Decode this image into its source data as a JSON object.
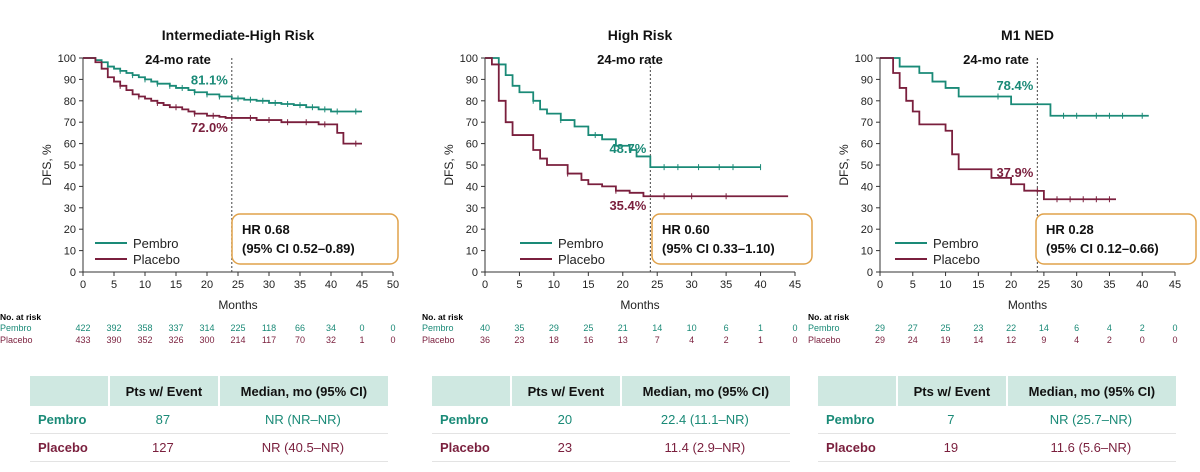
{
  "colors": {
    "pembro": "#1a8a77",
    "placebo": "#7a1f3d",
    "hr_box_border": "#e0a24a",
    "table_header_bg": "#cfe8e1"
  },
  "risk_title": "No. at risk",
  "table_headers": [
    "Pts w/ Event",
    "Median, mo (95% CI)"
  ],
  "chart_data": [
    {
      "type": "line",
      "title": "Intermediate-High Risk",
      "xlabel": "Months",
      "ylabel": "DFS, %",
      "xlim": [
        0,
        50
      ],
      "ylim": [
        0,
        100
      ],
      "xticks": [
        0,
        5,
        10,
        15,
        20,
        25,
        30,
        35,
        40,
        45,
        50
      ],
      "yticks": [
        0,
        10,
        20,
        30,
        40,
        50,
        60,
        70,
        80,
        90,
        100
      ],
      "rate_label": "24-mo rate",
      "rate_month": 24,
      "hr_line1": "HR 0.68",
      "hr_line2": "(95% CI 0.52–0.89)",
      "legend_placement": "bottom-left",
      "series": [
        {
          "name": "Pembro",
          "rate_text": "81.1%",
          "x": [
            0,
            2,
            3,
            4,
            5,
            6,
            7,
            8,
            9,
            10,
            11,
            12,
            13,
            14,
            15,
            16,
            17,
            18,
            19,
            20,
            21,
            22,
            23,
            24,
            26,
            28,
            30,
            32,
            34,
            36,
            38,
            40,
            42,
            44,
            45
          ],
          "y": [
            100,
            99,
            98,
            96,
            95,
            94,
            93,
            92,
            91,
            90,
            89,
            88,
            88,
            87,
            86,
            86,
            85,
            84,
            84,
            83,
            83,
            82,
            82,
            81.1,
            80.5,
            80,
            79,
            78.5,
            78,
            77,
            76,
            75,
            75,
            75,
            75
          ],
          "censor_x": [
            4,
            6,
            8,
            10,
            12,
            14,
            16,
            18,
            20,
            22,
            25,
            27,
            29,
            31,
            33,
            35,
            37,
            39,
            41,
            44
          ]
        },
        {
          "name": "Placebo",
          "rate_text": "72.0%",
          "x": [
            0,
            2,
            3,
            4,
            5,
            6,
            7,
            8,
            9,
            10,
            11,
            12,
            13,
            14,
            15,
            16,
            17,
            18,
            19,
            20,
            21,
            22,
            23,
            24,
            26,
            28,
            30,
            32,
            34,
            36,
            38,
            40,
            41,
            42,
            45
          ],
          "y": [
            100,
            98,
            95,
            91,
            89,
            87,
            85,
            83,
            82,
            81,
            80,
            79,
            78,
            77,
            77,
            76,
            75,
            74,
            74,
            73,
            73,
            72.5,
            72,
            72.0,
            72,
            71,
            71,
            70,
            70,
            70,
            69,
            69,
            65,
            60,
            60
          ],
          "censor_x": [
            6,
            9,
            12,
            15,
            18,
            21,
            24,
            27,
            30,
            33,
            36,
            39,
            44
          ]
        }
      ],
      "risk_x": [
        0,
        5,
        10,
        15,
        20,
        25,
        30,
        35,
        40,
        45,
        50
      ],
      "risk": [
        {
          "label": "Pembro",
          "values": [
            422,
            392,
            358,
            337,
            314,
            225,
            118,
            66,
            34,
            0,
            0
          ]
        },
        {
          "label": "Placebo",
          "values": [
            433,
            390,
            352,
            326,
            300,
            214,
            117,
            70,
            32,
            1,
            0
          ]
        }
      ],
      "table": [
        {
          "arm": "Pembro",
          "events": "87",
          "median": "NR (NR–NR)"
        },
        {
          "arm": "Placebo",
          "events": "127",
          "median": "NR (40.5–NR)"
        }
      ]
    },
    {
      "type": "line",
      "title": "High Risk",
      "xlabel": "Months",
      "ylabel": "DFS, %",
      "xlim": [
        0,
        45
      ],
      "ylim": [
        0,
        100
      ],
      "xticks": [
        0,
        5,
        10,
        15,
        20,
        25,
        30,
        35,
        40,
        45
      ],
      "yticks": [
        0,
        10,
        20,
        30,
        40,
        50,
        60,
        70,
        80,
        90,
        100
      ],
      "rate_label": "24-mo rate",
      "rate_month": 24,
      "hr_line1": "HR 0.60",
      "hr_line2": "(95% CI 0.33–1.10)",
      "legend_placement": "bottom-left",
      "series": [
        {
          "name": "Pembro",
          "rate_text": "48.7%",
          "x": [
            0,
            2,
            3,
            4,
            5,
            7,
            8,
            9,
            11,
            13,
            15,
            17,
            19,
            21,
            22,
            24,
            26,
            30,
            35,
            40
          ],
          "y": [
            100,
            97,
            92,
            87,
            84,
            80,
            76,
            74,
            71,
            68,
            64,
            62,
            59,
            57,
            54,
            49,
            49,
            49,
            49,
            49
          ],
          "censor_x": [
            7,
            11,
            16,
            21,
            26,
            28,
            31,
            34,
            36,
            40
          ]
        },
        {
          "name": "Placebo",
          "rate_text": "35.4%",
          "x": [
            0,
            1,
            2,
            3,
            4,
            7,
            8,
            9,
            12,
            14,
            15,
            17,
            19,
            21,
            23,
            26,
            30,
            35,
            40,
            44
          ],
          "y": [
            100,
            97,
            80,
            70,
            64,
            57,
            53,
            50,
            46,
            43,
            41,
            40,
            38,
            37,
            35.4,
            35.4,
            35.4,
            35.4,
            35.4,
            35.4
          ],
          "censor_x": [
            12,
            19,
            26,
            30,
            35
          ]
        }
      ],
      "risk_x": [
        0,
        5,
        10,
        15,
        20,
        25,
        30,
        35,
        40,
        45
      ],
      "risk": [
        {
          "label": "Pembro",
          "values": [
            40,
            35,
            29,
            25,
            21,
            14,
            10,
            6,
            1,
            0
          ]
        },
        {
          "label": "Placebo",
          "values": [
            36,
            23,
            18,
            16,
            13,
            7,
            4,
            2,
            1,
            0
          ]
        }
      ],
      "table": [
        {
          "arm": "Pembro",
          "events": "20",
          "median": "22.4 (11.1–NR)"
        },
        {
          "arm": "Placebo",
          "events": "23",
          "median": "11.4 (2.9–NR)"
        }
      ]
    },
    {
      "type": "line",
      "title": "M1 NED",
      "xlabel": "Months",
      "ylabel": "DFS, %",
      "xlim": [
        0,
        45
      ],
      "ylim": [
        0,
        100
      ],
      "xticks": [
        0,
        5,
        10,
        15,
        20,
        25,
        30,
        35,
        40,
        45
      ],
      "yticks": [
        0,
        10,
        20,
        30,
        40,
        50,
        60,
        70,
        80,
        90,
        100
      ],
      "rate_label": "24-mo rate",
      "rate_month": 24,
      "hr_line1": "HR 0.28",
      "hr_line2": "(95% CI 0.12–0.66)",
      "legend_placement": "bottom-left",
      "series": [
        {
          "name": "Pembro",
          "rate_text": "78.4%",
          "x": [
            0,
            3,
            6,
            8,
            10,
            12,
            20,
            25,
            26,
            30,
            35,
            41
          ],
          "y": [
            100,
            96,
            93,
            89,
            86,
            82,
            78.4,
            78.4,
            73,
            73,
            73,
            73
          ],
          "censor_x": [
            18,
            28,
            30,
            33,
            35,
            37,
            40
          ]
        },
        {
          "name": "Placebo",
          "rate_text": "37.9%",
          "x": [
            0,
            2,
            3,
            4,
            5,
            6,
            7,
            10,
            11,
            12,
            15,
            17,
            20,
            22,
            24,
            25,
            30,
            36
          ],
          "y": [
            100,
            93,
            86,
            80,
            75,
            69,
            69,
            66,
            55,
            48,
            48,
            44,
            41,
            38,
            37.9,
            34,
            34,
            34
          ],
          "censor_x": [
            24,
            27,
            29,
            31,
            33,
            35
          ]
        }
      ],
      "risk_x": [
        0,
        5,
        10,
        15,
        20,
        25,
        30,
        35,
        40,
        45
      ],
      "risk": [
        {
          "label": "Pembro",
          "values": [
            29,
            27,
            25,
            23,
            22,
            14,
            6,
            4,
            2,
            0
          ]
        },
        {
          "label": "Placebo",
          "values": [
            29,
            24,
            19,
            14,
            12,
            9,
            4,
            2,
            0,
            0
          ]
        }
      ],
      "table": [
        {
          "arm": "Pembro",
          "events": "7",
          "median": "NR (25.7–NR)"
        },
        {
          "arm": "Placebo",
          "events": "19",
          "median": "11.6 (5.6–NR)"
        }
      ]
    }
  ]
}
